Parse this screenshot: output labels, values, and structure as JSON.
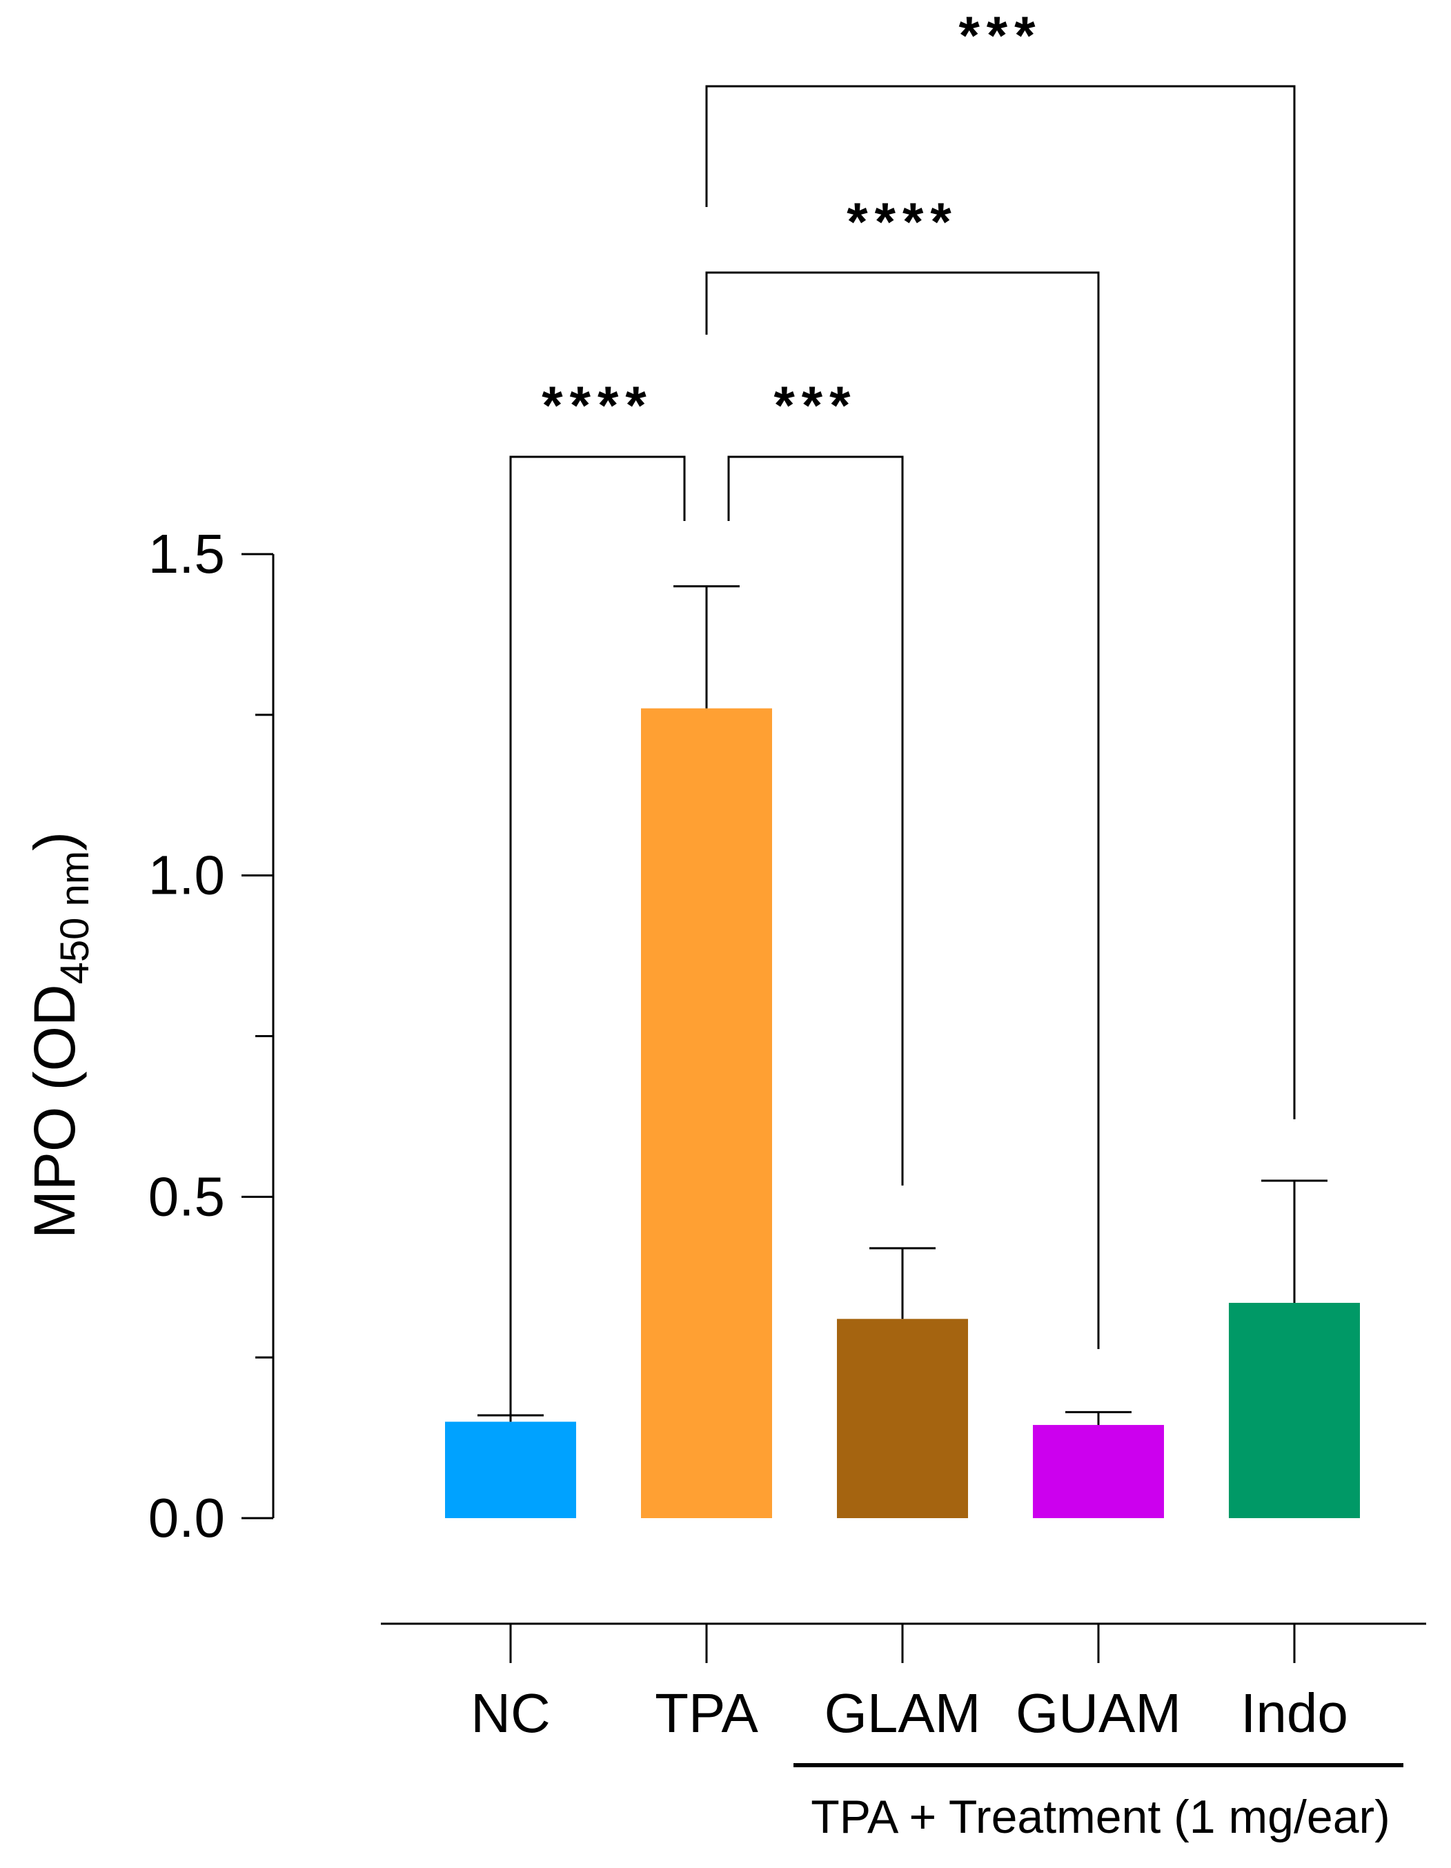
{
  "chart_data": {
    "type": "bar",
    "title": "",
    "xlabel": "",
    "ylabel_main": "MPO (OD",
    "ylabel_sub": "450 nm",
    "ylabel_close": ")",
    "ylim": [
      0,
      1.5
    ],
    "y_ticks": [
      "0.0",
      "0.5",
      "1.0",
      "1.5"
    ],
    "categories": [
      "NC",
      "TPA",
      "GLAM",
      "GUAM",
      "Indo"
    ],
    "values": [
      0.15,
      1.26,
      0.31,
      0.145,
      0.335
    ],
    "errors": [
      0.01,
      0.19,
      0.11,
      0.02,
      0.19
    ],
    "colors": [
      "#00A2FF",
      "#FFA033",
      "#A56410",
      "#CC00EE",
      "#009966"
    ],
    "group_label": "TPA + Treatment (1 mg/ear)",
    "group_span": [
      "GLAM",
      "Indo"
    ],
    "significance": [
      {
        "from": "NC",
        "to": "TPA",
        "label": "****"
      },
      {
        "from": "TPA",
        "to": "GLAM",
        "label": "***"
      },
      {
        "from": "TPA",
        "to": "GUAM",
        "label": "****"
      },
      {
        "from": "TPA",
        "to": "Indo",
        "label": "***"
      }
    ]
  }
}
